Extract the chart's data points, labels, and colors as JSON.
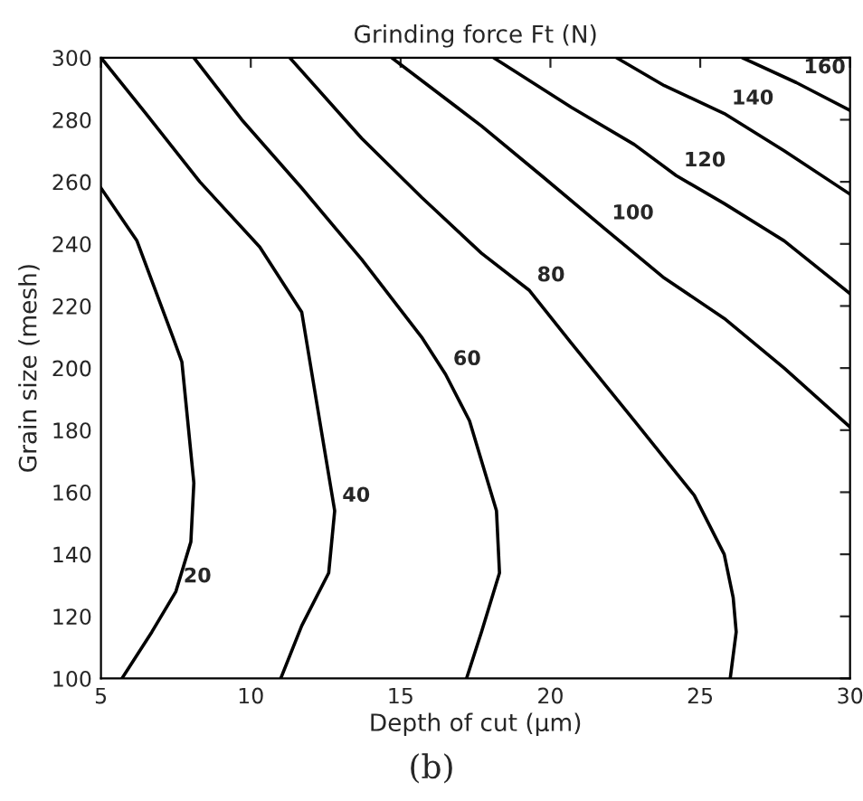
{
  "chart_data": {
    "type": "line",
    "title": "Grinding force Ft (N)",
    "xlabel": "Depth of cut (µm)",
    "ylabel": "Grain size (mesh)",
    "series": [
      {
        "color": "#000000",
        "x": [
          5,
          6.2,
          7.4,
          7.7,
          8.1,
          8,
          7.5,
          6.7,
          5.7
        ],
        "values": [
          258,
          241,
          210,
          202,
          163,
          144,
          128,
          115,
          100
        ]
      },
      {
        "color": "#000000",
        "x": [
          5,
          6.5,
          8.3,
          10.3,
          11.7,
          12.3,
          12.8,
          12.6,
          11.7,
          11
        ],
        "values": [
          300,
          282,
          260,
          239,
          218,
          183,
          154,
          134,
          117,
          100
        ]
      },
      {
        "color": "#000000",
        "x": [
          8.1,
          9.7,
          11.7,
          13.7,
          15.7,
          16.5,
          17.3,
          18.2,
          18.3,
          17.7,
          17.2
        ],
        "values": [
          300,
          280,
          258,
          235,
          210,
          198,
          183,
          154,
          134,
          115,
          100
        ]
      },
      {
        "color": "#000000",
        "x": [
          11.3,
          13.7,
          15.7,
          17.7,
          19.3,
          20.7,
          22.8,
          24.8,
          25.8,
          26.1,
          26.2,
          26
        ],
        "values": [
          300,
          274,
          255,
          237,
          225,
          208,
          183,
          159,
          140,
          126,
          115,
          100
        ]
      },
      {
        "color": "#000000",
        "x": [
          14.7,
          17.7,
          19.7,
          21.8,
          23.8,
          25.8,
          27.8,
          30
        ],
        "values": [
          300,
          278,
          262,
          245,
          229,
          216,
          200,
          181
        ]
      },
      {
        "color": "#000000",
        "x": [
          18.1,
          20.7,
          22.8,
          24.2,
          25.8,
          27.8,
          30
        ],
        "values": [
          300,
          284,
          272,
          262,
          253,
          241,
          224
        ]
      },
      {
        "color": "#000000",
        "x": [
          22.2,
          23.8,
          25.8,
          27.8,
          30
        ],
        "values": [
          300,
          291,
          282,
          270,
          256
        ]
      },
      {
        "color": "#000000",
        "x": [
          26.4,
          28.2,
          30
        ],
        "values": [
          300,
          292,
          283
        ]
      }
    ],
    "annotations": [
      {
        "text": "20",
        "x": 7.5,
        "y": 128
      },
      {
        "text": "40",
        "x": 12.8,
        "y": 154
      },
      {
        "text": "60",
        "x": 16.5,
        "y": 198
      },
      {
        "text": "80",
        "x": 19.3,
        "y": 225
      },
      {
        "text": "100",
        "x": 21.8,
        "y": 245
      },
      {
        "text": "120",
        "x": 24.2,
        "y": 262
      },
      {
        "text": "140",
        "x": 25.8,
        "y": 282
      },
      {
        "text": "160",
        "x": 28.2,
        "y": 292
      },
      "(b)"
    ],
    "xlim": [
      5,
      30
    ],
    "xticks": [
      5,
      10,
      15,
      20,
      25,
      30
    ],
    "ylim": [
      100,
      300
    ],
    "yticks": [
      100,
      120,
      140,
      160,
      180,
      200,
      220,
      240,
      260,
      280,
      300
    ],
    "grid": false,
    "legend": false,
    "marker": "none",
    "line_style": "solid"
  }
}
